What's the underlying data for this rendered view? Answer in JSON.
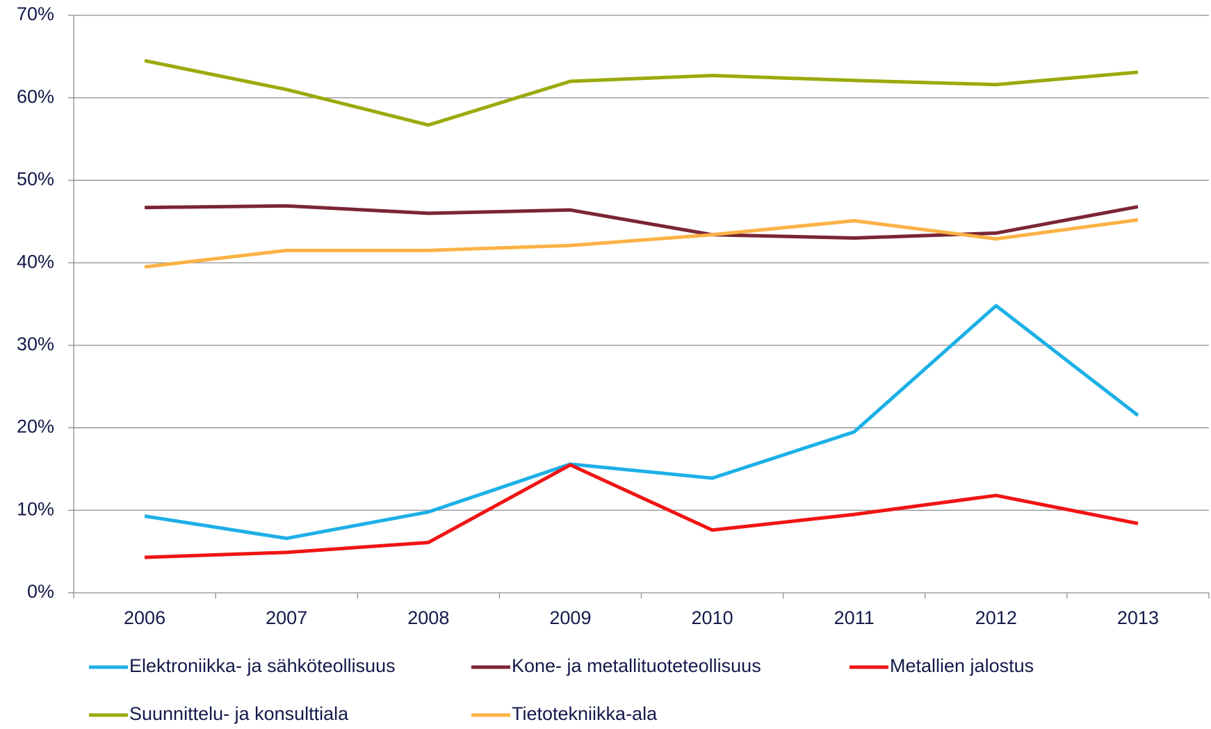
{
  "chart_data": {
    "type": "line",
    "categories": [
      "2006",
      "2007",
      "2008",
      "2009",
      "2010",
      "2011",
      "2012",
      "2013"
    ],
    "series": [
      {
        "name": "Elektroniikka- ja sähköteollisuus",
        "color": "#1db0e6",
        "values": [
          9.3,
          6.6,
          9.8,
          15.6,
          13.9,
          19.5,
          34.8,
          21.5
        ]
      },
      {
        "name": "Kone- ja metallituoteteollisuus",
        "color": "#7b2535",
        "values": [
          46.7,
          46.9,
          46.0,
          46.4,
          43.4,
          43.0,
          43.6,
          46.8
        ]
      },
      {
        "name": "Metallien jalostus",
        "color": "#f01414",
        "values": [
          4.3,
          4.9,
          6.1,
          15.5,
          7.6,
          9.5,
          11.8,
          8.4
        ]
      },
      {
        "name": "Suunnittelu- ja konsulttiala",
        "color": "#9aaa0c",
        "values": [
          64.5,
          61.0,
          56.7,
          62.0,
          62.7,
          62.1,
          61.6,
          63.1
        ]
      },
      {
        "name": "Tietotekniikka-ala",
        "color": "#fbb244",
        "values": [
          39.5,
          41.5,
          41.5,
          42.1,
          43.4,
          45.1,
          42.9,
          45.2
        ]
      }
    ],
    "ylim": [
      0,
      70
    ],
    "yticks": [
      {
        "value": 0,
        "label": "0%"
      },
      {
        "value": 10,
        "label": "10%"
      },
      {
        "value": 20,
        "label": "20%"
      },
      {
        "value": 30,
        "label": "30%"
      },
      {
        "value": 40,
        "label": "40%"
      },
      {
        "value": 50,
        "label": "50%"
      },
      {
        "value": 60,
        "label": "60%"
      },
      {
        "value": 70,
        "label": "70%"
      }
    ],
    "grid": true,
    "legend": "bottom"
  }
}
